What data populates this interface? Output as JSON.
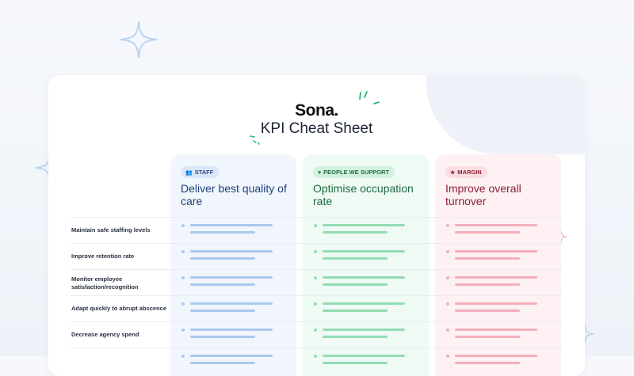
{
  "brand": {
    "logo": "Sona."
  },
  "page": {
    "title": "KPI Cheat Sheet"
  },
  "colors": {
    "staff_accent": "#1f3f78",
    "people_accent": "#1f6a41",
    "margin_accent": "#8e1f36",
    "sparkle": "#bcd3f3"
  },
  "columns": [
    {
      "badge_icon": "👥",
      "badge_icon_name": "people-icon",
      "badge": "STAFF",
      "heading": "Deliver best quality of care"
    },
    {
      "badge_icon": "♥",
      "badge_icon_name": "heart-icon",
      "badge": "PEOPLE WE SUPPORT",
      "heading": "Optimise occupation rate"
    },
    {
      "badge_icon": "★",
      "badge_icon_name": "star-icon",
      "badge": "MARGIN",
      "heading": "Improve overall turnover"
    }
  ],
  "rows": [
    "Maintain safe staffing levels",
    "Improve retention rate",
    "Monitor employee satisfaction/recognition",
    "Adapt quickly to abrupt abscence",
    "Decrease agency spend"
  ]
}
